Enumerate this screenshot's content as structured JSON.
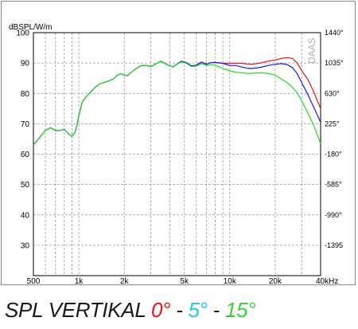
{
  "chart_data": {
    "type": "line",
    "x_scale": "log",
    "xlim": [
      500,
      40000
    ],
    "ylim": [
      20,
      100
    ],
    "y2lim": [
      -1800,
      1440
    ],
    "grid": true,
    "ylabel": "dBSPL/W/m",
    "watermark": "DAAS",
    "x_tick_labels": [
      {
        "value": 500,
        "label": "500"
      },
      {
        "value": 1000,
        "label": "1k"
      },
      {
        "value": 2000,
        "label": "2k"
      },
      {
        "value": 5000,
        "label": "5k"
      },
      {
        "value": 10000,
        "label": "10k"
      },
      {
        "value": 20000,
        "label": "20k"
      },
      {
        "value": 40000,
        "label": "40kHz"
      }
    ],
    "y_tick_labels": [
      {
        "value": 100,
        "label": "100"
      },
      {
        "value": 90,
        "label": "90"
      },
      {
        "value": 80,
        "label": "80"
      },
      {
        "value": 70,
        "label": "70"
      },
      {
        "value": 60,
        "label": "60"
      },
      {
        "value": 50,
        "label": "50"
      },
      {
        "value": 40,
        "label": "40"
      },
      {
        "value": 30,
        "label": "30"
      }
    ],
    "y2_tick_labels": [
      {
        "value": 1440,
        "label": "1440°"
      },
      {
        "value": 1035,
        "label": "1035°"
      },
      {
        "value": 630,
        "label": "630°"
      },
      {
        "value": 225,
        "label": "225°"
      },
      {
        "value": -180,
        "label": "-180°"
      },
      {
        "value": -585,
        "label": "-585°"
      },
      {
        "value": -990,
        "label": "-990°"
      },
      {
        "value": -1395,
        "label": "-1395"
      }
    ],
    "series": [
      {
        "name": "0°",
        "color": "#e8141e",
        "points": [
          [
            500,
            63
          ],
          [
            550,
            65.5
          ],
          [
            600,
            67.8
          ],
          [
            650,
            68.7
          ],
          [
            700,
            67.8
          ],
          [
            750,
            67.8
          ],
          [
            800,
            68.2
          ],
          [
            850,
            66.8
          ],
          [
            900,
            65.8
          ],
          [
            950,
            67.5
          ],
          [
            1000,
            72.5
          ],
          [
            1050,
            77
          ],
          [
            1100,
            78.5
          ],
          [
            1200,
            80.5
          ],
          [
            1300,
            82.3
          ],
          [
            1400,
            83.3
          ],
          [
            1500,
            83.7
          ],
          [
            1600,
            84.2
          ],
          [
            1700,
            84.8
          ],
          [
            1800,
            86
          ],
          [
            1900,
            86.5
          ],
          [
            2000,
            86
          ],
          [
            2100,
            85.8
          ],
          [
            2200,
            86.8
          ],
          [
            2400,
            88.2
          ],
          [
            2600,
            89.2
          ],
          [
            2800,
            89.2
          ],
          [
            3000,
            88.8
          ],
          [
            3200,
            89.6
          ],
          [
            3500,
            90.6
          ],
          [
            3800,
            89.6
          ],
          [
            4200,
            88.7
          ],
          [
            4500,
            89.7
          ],
          [
            4800,
            90.6
          ],
          [
            5200,
            90
          ],
          [
            5600,
            89
          ],
          [
            6000,
            89.3
          ],
          [
            6500,
            90.3
          ],
          [
            7000,
            89.6
          ],
          [
            7500,
            90.1
          ],
          [
            8000,
            90.2
          ],
          [
            9000,
            89.9
          ],
          [
            10000,
            89.9
          ],
          [
            11000,
            89.9
          ],
          [
            12000,
            89.9
          ],
          [
            13000,
            89.7
          ],
          [
            14000,
            89.6
          ],
          [
            16000,
            90
          ],
          [
            18000,
            90.6
          ],
          [
            20000,
            91
          ],
          [
            22000,
            91.5
          ],
          [
            24000,
            91.8
          ],
          [
            26000,
            91.5
          ],
          [
            28000,
            90
          ],
          [
            30000,
            87.5
          ],
          [
            33000,
            84.5
          ],
          [
            36000,
            80.5
          ],
          [
            40000,
            75
          ]
        ]
      },
      {
        "name": "5°",
        "color": "#1818ee",
        "points": [
          [
            500,
            63
          ],
          [
            550,
            65.5
          ],
          [
            600,
            67.8
          ],
          [
            650,
            68.7
          ],
          [
            700,
            67.8
          ],
          [
            750,
            67.8
          ],
          [
            800,
            68.2
          ],
          [
            850,
            66.8
          ],
          [
            900,
            65.8
          ],
          [
            950,
            67.5
          ],
          [
            1000,
            72.5
          ],
          [
            1050,
            77
          ],
          [
            1100,
            78.5
          ],
          [
            1200,
            80.5
          ],
          [
            1300,
            82.3
          ],
          [
            1400,
            83.3
          ],
          [
            1500,
            83.7
          ],
          [
            1600,
            84.2
          ],
          [
            1700,
            84.8
          ],
          [
            1800,
            86
          ],
          [
            1900,
            86.5
          ],
          [
            2000,
            86
          ],
          [
            2100,
            85.8
          ],
          [
            2200,
            86.8
          ],
          [
            2400,
            88.2
          ],
          [
            2600,
            89.2
          ],
          [
            2800,
            89.2
          ],
          [
            3000,
            88.8
          ],
          [
            3200,
            89.6
          ],
          [
            3500,
            90.6
          ],
          [
            3800,
            89.6
          ],
          [
            4200,
            88.7
          ],
          [
            4500,
            89.7
          ],
          [
            4800,
            90.6
          ],
          [
            5200,
            90
          ],
          [
            5600,
            89
          ],
          [
            6000,
            89.3
          ],
          [
            6500,
            90.3
          ],
          [
            7000,
            89.6
          ],
          [
            7500,
            90.1
          ],
          [
            8000,
            90.2
          ],
          [
            9000,
            89.9
          ],
          [
            10000,
            89.2
          ],
          [
            11000,
            89.2
          ],
          [
            12000,
            88.7
          ],
          [
            13000,
            88.3
          ],
          [
            14000,
            88.2
          ],
          [
            16000,
            88.6
          ],
          [
            18000,
            89.2
          ],
          [
            20000,
            89.6
          ],
          [
            22000,
            89.8
          ],
          [
            24000,
            89.5
          ],
          [
            26000,
            88.5
          ],
          [
            28000,
            86.5
          ],
          [
            30000,
            83.5
          ],
          [
            33000,
            79.5
          ],
          [
            36000,
            75.5
          ],
          [
            40000,
            70.5
          ]
        ]
      },
      {
        "name": "15°",
        "color": "#22dd22",
        "points": [
          [
            500,
            63
          ],
          [
            550,
            65.5
          ],
          [
            600,
            67.8
          ],
          [
            650,
            68.7
          ],
          [
            700,
            67.8
          ],
          [
            750,
            67.8
          ],
          [
            800,
            68.2
          ],
          [
            850,
            66.8
          ],
          [
            900,
            65.8
          ],
          [
            950,
            67.5
          ],
          [
            1000,
            72.5
          ],
          [
            1050,
            77
          ],
          [
            1100,
            78.5
          ],
          [
            1200,
            80.5
          ],
          [
            1300,
            82.3
          ],
          [
            1400,
            83.3
          ],
          [
            1500,
            83.7
          ],
          [
            1600,
            84.2
          ],
          [
            1700,
            84.8
          ],
          [
            1800,
            86
          ],
          [
            1900,
            86.5
          ],
          [
            2000,
            86
          ],
          [
            2100,
            85.8
          ],
          [
            2200,
            86.8
          ],
          [
            2400,
            88.2
          ],
          [
            2600,
            89.2
          ],
          [
            2800,
            89.2
          ],
          [
            3000,
            88.8
          ],
          [
            3200,
            89.6
          ],
          [
            3500,
            90.6
          ],
          [
            3800,
            89.6
          ],
          [
            4200,
            88.7
          ],
          [
            4500,
            89.7
          ],
          [
            4800,
            90.4
          ],
          [
            5200,
            89.8
          ],
          [
            5600,
            88.8
          ],
          [
            6000,
            89
          ],
          [
            6500,
            89.8
          ],
          [
            7000,
            89.2
          ],
          [
            7500,
            89.4
          ],
          [
            8000,
            89.3
          ],
          [
            9000,
            88.2
          ],
          [
            10000,
            87.4
          ],
          [
            11000,
            87
          ],
          [
            12000,
            86.8
          ],
          [
            13000,
            86.6
          ],
          [
            14000,
            86.6
          ],
          [
            16000,
            86.8
          ],
          [
            18000,
            86.6
          ],
          [
            20000,
            86
          ],
          [
            22000,
            84.8
          ],
          [
            24000,
            83.5
          ],
          [
            26000,
            82
          ],
          [
            28000,
            80.2
          ],
          [
            30000,
            77.5
          ],
          [
            33000,
            73.5
          ],
          [
            36000,
            69.5
          ],
          [
            40000,
            63.5
          ]
        ]
      }
    ]
  },
  "caption": {
    "prefix": "SPL VERTIKAL ",
    "angle_0": "0°",
    "sep_1": " - ",
    "angle_5": "5°",
    "sep_2": " - ",
    "angle_15": "15°"
  }
}
